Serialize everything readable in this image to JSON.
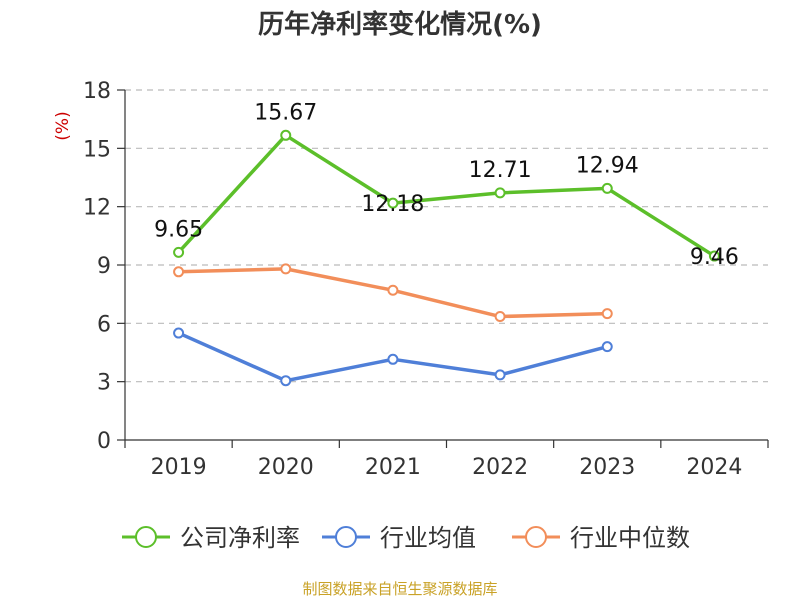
{
  "chart_data": {
    "type": "line",
    "title": "历年净利率变化情况(%)",
    "unit": "(%)",
    "categories": [
      "2019",
      "2020",
      "2021",
      "2022",
      "2023",
      "2024"
    ],
    "ylim": [
      0,
      18
    ],
    "yticks": [
      "0",
      "3",
      "6",
      "9",
      "12",
      "15",
      "18"
    ],
    "grid": true,
    "legend_position": "bottom",
    "series": [
      {
        "name": "公司净利率",
        "color": "#5cbf2a",
        "values": [
          9.65,
          15.67,
          12.18,
          12.71,
          12.94,
          9.46
        ],
        "labels": [
          "9.65",
          "15.67",
          "12.18",
          "12.71",
          "12.94",
          "9.46"
        ]
      },
      {
        "name": "行业均值",
        "color": "#4f7fd8",
        "values": [
          5.5,
          3.05,
          4.15,
          3.35,
          4.8,
          null
        ]
      },
      {
        "name": "行业中位数",
        "color": "#f28e5a",
        "values": [
          8.65,
          8.8,
          7.7,
          6.35,
          6.5,
          null
        ]
      }
    ]
  },
  "source_note": "制图数据来自恒生聚源数据库"
}
